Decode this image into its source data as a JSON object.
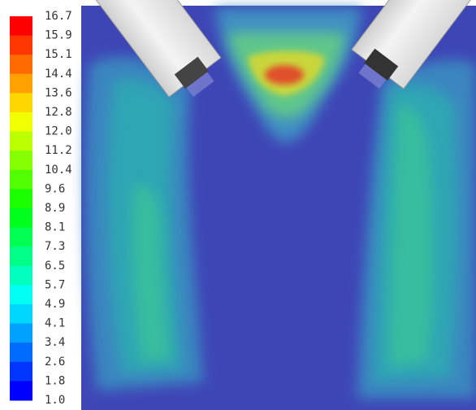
{
  "legend": {
    "labels": [
      "16.7",
      "15.9",
      "15.1",
      "14.4",
      "13.6",
      "12.8",
      "12.0",
      "11.2",
      "10.4",
      "9.6",
      "8.9",
      "8.1",
      "7.3",
      "6.5",
      "5.7",
      "4.9",
      "4.1",
      "3.4",
      "2.6",
      "1.8",
      "1.0"
    ]
  }
}
